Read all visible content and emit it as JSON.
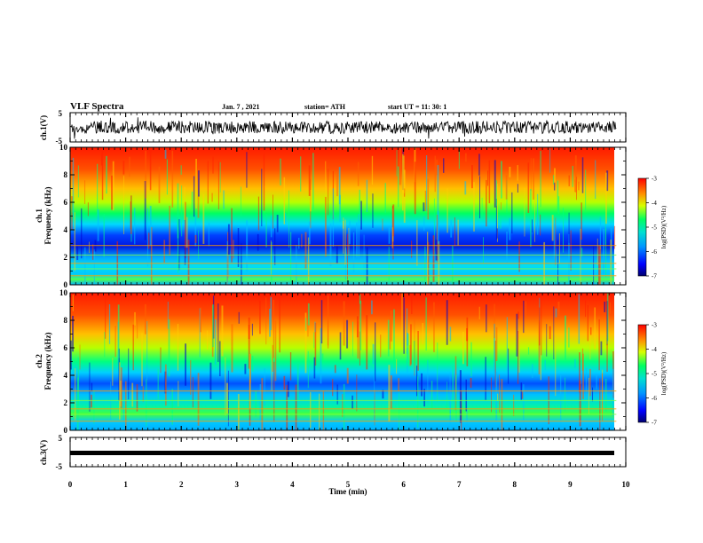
{
  "header": {
    "title": "VLF Spectra",
    "date": "Jan. 7 , 2021",
    "station": "station= ATH",
    "start": "start  UT =   11: 30: 1"
  },
  "chart_data": [
    {
      "type": "line",
      "name": "ch1-waveform",
      "ylabel": "ch.1(V)",
      "ylim": [
        -5,
        5
      ],
      "yticklabels": [
        "5",
        "-5"
      ],
      "xlim": [
        0,
        10
      ],
      "x_data_end": 9.83
    },
    {
      "type": "heatmap",
      "name": "ch1-spectrogram",
      "ylabel_top": "ch.1",
      "ylabel": "Frequency (kHz)",
      "ylim": [
        0,
        10
      ],
      "yticks": [
        "0",
        "2",
        "4",
        "6",
        "8",
        "10"
      ],
      "xlim": [
        0,
        10
      ],
      "x_data_end": 9.83,
      "colorbar": {
        "label": "log(PSD)(V²/Hz)",
        "range": [
          -7,
          -3
        ],
        "ticks": [
          "-3",
          "-4",
          "-5",
          "-6",
          "-7"
        ]
      }
    },
    {
      "type": "heatmap",
      "name": "ch2-spectrogram",
      "ylabel_top": "ch.2",
      "ylabel": "Frequency (kHz)",
      "ylim": [
        0,
        10
      ],
      "yticks": [
        "0",
        "2",
        "4",
        "6",
        "8",
        "10"
      ],
      "xlim": [
        0,
        10
      ],
      "x_data_end": 9.83,
      "colorbar": {
        "label": "log(PSD)(V²/Hz)",
        "range": [
          -7,
          -3
        ],
        "ticks": [
          "-3",
          "-4",
          "-5",
          "-6",
          "-7"
        ]
      }
    },
    {
      "type": "line",
      "name": "ch3-waveform",
      "ylabel": "ch.3(V)",
      "ylim": [
        -5,
        5
      ],
      "yticklabels": [
        "5",
        "-5"
      ],
      "xlim": [
        0,
        10
      ],
      "x_data_end": 9.83
    }
  ],
  "x_axis": {
    "label": "Time (min)",
    "ticks": [
      "0",
      "1",
      "2",
      "3",
      "4",
      "5",
      "6",
      "7",
      "8",
      "9",
      "10"
    ]
  },
  "colors": {
    "frame": "#000000",
    "colormap": [
      "#00008f",
      "#0000ff",
      "#00bfff",
      "#00ff80",
      "#ffff00",
      "#ff7f00",
      "#ff0000"
    ]
  }
}
